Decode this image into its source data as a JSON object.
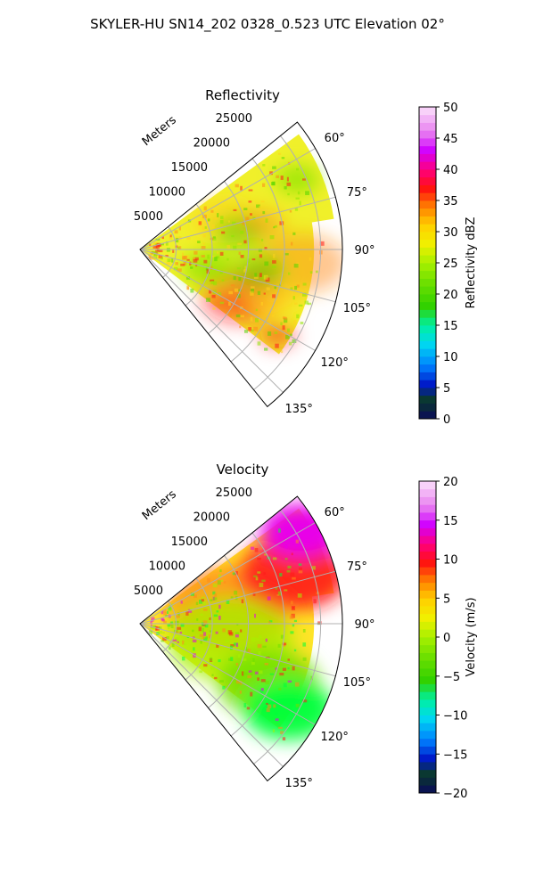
{
  "figure": {
    "suptitle": "SKYLER-HU  SN14_202  0328_0.523 UTC Elevation 02°"
  },
  "chart_data": [
    {
      "type": "polar-ppi",
      "title": "Reflectivity",
      "range_axis_label": "Meters",
      "range_ticks": [
        5000,
        10000,
        15000,
        20000,
        25000
      ],
      "range_tick_labels": [
        "5000",
        "10000",
        "15000",
        "20000",
        "25000"
      ],
      "range_max": 28000,
      "azimuth_range": [
        51,
        141
      ],
      "azimuth_ticks": [
        60,
        75,
        90,
        105,
        120,
        135
      ],
      "azimuth_tick_labels": [
        "60°",
        "75°",
        "90°",
        "105°",
        "120°",
        "135°"
      ],
      "grid": true,
      "colorbar": {
        "label": "Reflectivity dBZ",
        "range": [
          0,
          50
        ],
        "ticks": [
          0,
          5,
          10,
          15,
          20,
          25,
          30,
          35,
          40,
          45,
          50
        ],
        "tick_labels": [
          "0",
          "5",
          "10",
          "15",
          "20",
          "25",
          "30",
          "35",
          "40",
          "45",
          "50"
        ],
        "stops": [
          [
            0.0,
            "#0a0a5a"
          ],
          [
            0.06,
            "#0a3a2a"
          ],
          [
            0.11,
            "#0018c8"
          ],
          [
            0.17,
            "#0080ff"
          ],
          [
            0.24,
            "#00d8f0"
          ],
          [
            0.3,
            "#00f0a0"
          ],
          [
            0.36,
            "#30d000"
          ],
          [
            0.44,
            "#70e000"
          ],
          [
            0.5,
            "#a8f000"
          ],
          [
            0.56,
            "#f0f000"
          ],
          [
            0.62,
            "#ffd000"
          ],
          [
            0.68,
            "#ff8000"
          ],
          [
            0.74,
            "#ff1010"
          ],
          [
            0.8,
            "#ff0080"
          ],
          [
            0.86,
            "#d000ff"
          ],
          [
            0.92,
            "#e880f0"
          ],
          [
            1.0,
            "#fbe0fb"
          ]
        ]
      },
      "field_colors": {
        "background": "#e0f520",
        "base": "#f0f02a",
        "regions": [
          [
            "#ffd21e",
            0.45
          ],
          [
            "#ff8a1a",
            0.18
          ],
          [
            "#ff1a1a",
            0.25
          ],
          [
            "#8ee600",
            0.5
          ],
          [
            "#52d600",
            0.25
          ]
        ]
      }
    },
    {
      "type": "polar-ppi",
      "title": "Velocity",
      "range_axis_label": "Meters",
      "range_ticks": [
        5000,
        10000,
        15000,
        20000,
        25000
      ],
      "range_tick_labels": [
        "5000",
        "10000",
        "15000",
        "20000",
        "25000"
      ],
      "range_max": 28000,
      "azimuth_range": [
        51,
        141
      ],
      "azimuth_ticks": [
        60,
        75,
        90,
        105,
        120,
        135
      ],
      "azimuth_tick_labels": [
        "60°",
        "75°",
        "90°",
        "105°",
        "120°",
        "135°"
      ],
      "grid": true,
      "colorbar": {
        "label": "Velocity (m/s)",
        "range": [
          -20,
          20
        ],
        "ticks": [
          -20,
          -15,
          -10,
          -5,
          0,
          5,
          10,
          15,
          20
        ],
        "tick_labels": [
          "−20",
          "−15",
          "−10",
          "−5",
          "0",
          "5",
          "10",
          "15",
          "20"
        ],
        "stops": [
          [
            0.0,
            "#0a0a5a"
          ],
          [
            0.06,
            "#0a3a2a"
          ],
          [
            0.11,
            "#0018c8"
          ],
          [
            0.17,
            "#0080ff"
          ],
          [
            0.24,
            "#00d8f0"
          ],
          [
            0.3,
            "#00f0a0"
          ],
          [
            0.36,
            "#30d000"
          ],
          [
            0.44,
            "#70e000"
          ],
          [
            0.5,
            "#a8f000"
          ],
          [
            0.56,
            "#f0f000"
          ],
          [
            0.62,
            "#ffd000"
          ],
          [
            0.68,
            "#ff8000"
          ],
          [
            0.74,
            "#ff1010"
          ],
          [
            0.8,
            "#ff0080"
          ],
          [
            0.86,
            "#d000ff"
          ],
          [
            0.92,
            "#e880f0"
          ],
          [
            1.0,
            "#fbe0fb"
          ]
        ]
      },
      "field_colors": {
        "background": "#c9f030",
        "base": "#ffe428",
        "regions": [
          [
            "#ff8a1a",
            0.5
          ],
          [
            "#ff1a1a",
            0.6
          ],
          [
            "#e800e8",
            0.75
          ],
          [
            "#a8f000",
            0.5
          ],
          [
            "#6fe000",
            0.55
          ],
          [
            "#00ff3a",
            0.65
          ]
        ]
      }
    }
  ]
}
